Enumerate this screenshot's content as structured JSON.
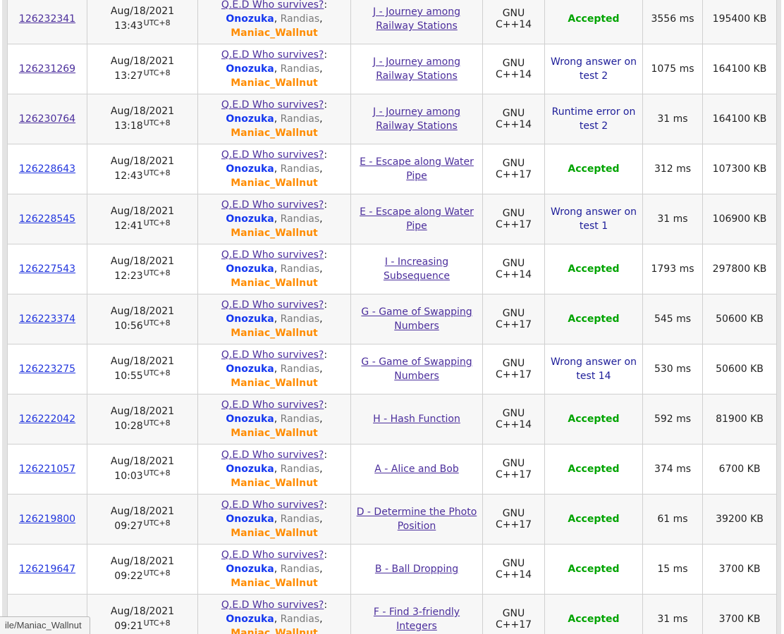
{
  "table": {
    "date": "Aug/18/2021",
    "tz": "UTC+8",
    "team": {
      "name": "Q.E.D Who survives?",
      "colon": ":",
      "separator": ", ",
      "members": [
        {
          "handle": "Onozuka",
          "color_class": "user-blue"
        },
        {
          "handle": "Randias",
          "color_class": "user-gray"
        },
        {
          "handle": "Maniac_Wallnut",
          "color_class": "user-orange"
        }
      ]
    },
    "rows": [
      {
        "id": "126232341",
        "id_visited": true,
        "time": "13:43",
        "problem": "J - Journey among Railway Stations",
        "lang": "GNU C++14",
        "verdict": "Accepted",
        "verdict_type": "accepted",
        "exec": "3556 ms",
        "mem": "195400 KB"
      },
      {
        "id": "126231269",
        "id_visited": true,
        "time": "13:27",
        "problem": "J - Journey among Railway Stations",
        "lang": "GNU C++14",
        "verdict": "Wrong answer on test 2",
        "verdict_type": "rejected",
        "exec": "1075 ms",
        "mem": "164100 KB"
      },
      {
        "id": "126230764",
        "id_visited": true,
        "time": "13:18",
        "problem": "J - Journey among Railway Stations",
        "lang": "GNU C++14",
        "verdict": "Runtime error on test 2",
        "verdict_type": "rejected",
        "exec": "31 ms",
        "mem": "164100 KB"
      },
      {
        "id": "126228643",
        "id_visited": false,
        "time": "12:43",
        "problem": "E - Escape along Water Pipe",
        "lang": "GNU C++17",
        "verdict": "Accepted",
        "verdict_type": "accepted",
        "exec": "312 ms",
        "mem": "107300 KB"
      },
      {
        "id": "126228545",
        "id_visited": false,
        "time": "12:41",
        "problem": "E - Escape along Water Pipe",
        "lang": "GNU C++17",
        "verdict": "Wrong answer on test 1",
        "verdict_type": "rejected",
        "exec": "31 ms",
        "mem": "106900 KB"
      },
      {
        "id": "126227543",
        "id_visited": false,
        "time": "12:23",
        "problem": "I - Increasing Subsequence",
        "lang": "GNU C++14",
        "verdict": "Accepted",
        "verdict_type": "accepted",
        "exec": "1793 ms",
        "mem": "297800 KB"
      },
      {
        "id": "126223374",
        "id_visited": false,
        "time": "10:56",
        "problem": "G - Game of Swapping Numbers",
        "lang": "GNU C++17",
        "verdict": "Accepted",
        "verdict_type": "accepted",
        "exec": "545 ms",
        "mem": "50600 KB"
      },
      {
        "id": "126223275",
        "id_visited": false,
        "time": "10:55",
        "problem": "G - Game of Swapping Numbers",
        "lang": "GNU C++17",
        "verdict": "Wrong answer on test 14",
        "verdict_type": "rejected",
        "exec": "530 ms",
        "mem": "50600 KB"
      },
      {
        "id": "126222042",
        "id_visited": false,
        "time": "10:28",
        "problem": "H - Hash Function",
        "lang": "GNU C++14",
        "verdict": "Accepted",
        "verdict_type": "accepted",
        "exec": "592 ms",
        "mem": "81900 KB"
      },
      {
        "id": "126221057",
        "id_visited": false,
        "time": "10:03",
        "problem": "A - Alice and Bob",
        "lang": "GNU C++17",
        "verdict": "Accepted",
        "verdict_type": "accepted",
        "exec": "374 ms",
        "mem": "6700 KB"
      },
      {
        "id": "126219800",
        "id_visited": false,
        "time": "09:27",
        "problem": "D - Determine the Photo Position",
        "lang": "GNU C++17",
        "verdict": "Accepted",
        "verdict_type": "accepted",
        "exec": "61 ms",
        "mem": "39200 KB"
      },
      {
        "id": "126219647",
        "id_visited": false,
        "time": "09:22",
        "problem": "B - Ball Dropping",
        "lang": "GNU C++14",
        "verdict": "Accepted",
        "verdict_type": "accepted",
        "exec": "15 ms",
        "mem": "3700 KB"
      },
      {
        "id": "",
        "id_visited": false,
        "time": "09:21",
        "problem": "F - Find 3-friendly Integers",
        "lang": "GNU C++17",
        "verdict": "Accepted",
        "verdict_type": "accepted",
        "exec": "31 ms",
        "mem": "3700 KB"
      }
    ]
  },
  "status_bar": {
    "text": "ile/Maniac_Wallnut"
  },
  "colors": {
    "link_blue": "#2135de",
    "link_visited": "#4b2e9c",
    "user_blue": "#1437f0",
    "user_gray": "#7a7a7a",
    "user_orange": "#ff8c00",
    "verdict_accepted": "#00a400",
    "verdict_rejected": "#1d1d99",
    "row_alt": "#f7f7f7",
    "border": "#d0d0d0",
    "frame": "#e4e4e4",
    "text": "#222222",
    "statusbar_bg": "#f4f4f4",
    "statusbar_border": "#b9b9b9",
    "statusbar_text": "#474747"
  }
}
